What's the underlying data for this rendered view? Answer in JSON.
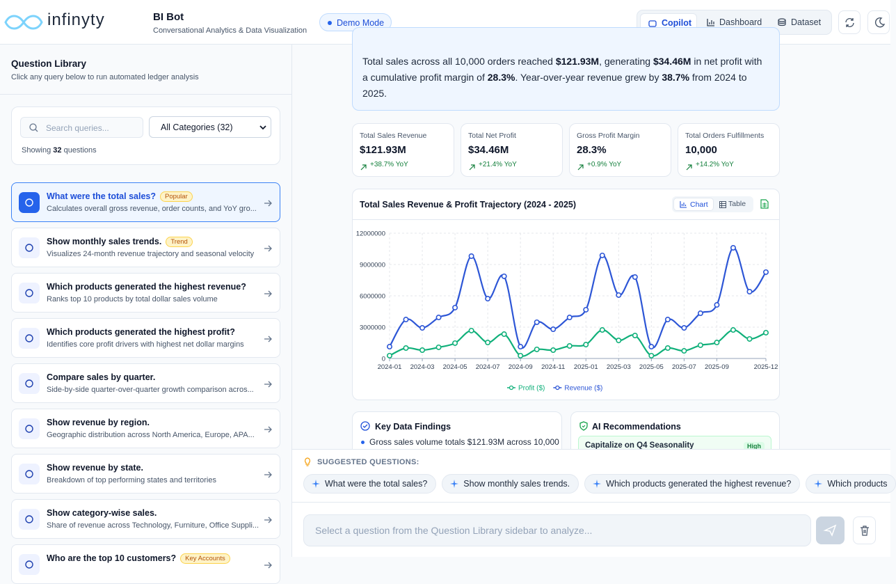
{
  "header": {
    "brand": "infinyty",
    "app_title": "BI Bot",
    "app_subtitle": "Conversational Analytics & Data Visualization",
    "mode_badge": "Demo Mode",
    "nav": [
      "Copilot",
      "Dashboard",
      "Dataset"
    ]
  },
  "sidebar": {
    "title": "Question Library",
    "subtitle": "Click any query below to run automated ledger analysis",
    "search_placeholder": "Search queries...",
    "category_select": "All Categories (32)",
    "showing_prefix": "Showing",
    "showing_count": 32,
    "showing_suffix": "questions",
    "questions": [
      {
        "title": "What were the total sales?",
        "tag": "Popular",
        "description": "Calculates overall gross revenue, order counts, and YoY gro..."
      },
      {
        "title": "Show monthly sales trends.",
        "tag": "Trend",
        "description": "Visualizes 24-month revenue trajectory and seasonal velocity"
      },
      {
        "title": "Which products generated the highest revenue?",
        "description": "Ranks top 10 products by total dollar sales volume"
      },
      {
        "title": "Which products generated the highest profit?",
        "description": "Identifies core profit drivers with highest net dollar margins"
      },
      {
        "title": "Compare sales by quarter.",
        "description": "Side-by-side quarter-over-quarter growth comparison acros..."
      },
      {
        "title": "Show revenue by region.",
        "description": "Geographic distribution across North America, Europe, APA..."
      },
      {
        "title": "Show revenue by state.",
        "description": "Breakdown of top performing states and territories"
      },
      {
        "title": "Show category-wise sales.",
        "description": "Share of revenue across Technology, Furniture, Office Suppli..."
      },
      {
        "title": "Who are the top 10 customers?",
        "tag": "Key Accounts"
      }
    ]
  },
  "summary": [
    {
      "text": "Total sales across all 10,000 orders reached "
    },
    {
      "text": "$121.93M",
      "bold": true
    },
    {
      "text": ", generating "
    },
    {
      "text": "$34.46M",
      "bold": true
    },
    {
      "text": " in net profit with a cumulative profit margin of "
    },
    {
      "text": "28.3%",
      "bold": true
    },
    {
      "text": ". Year-over-year revenue grew by "
    },
    {
      "text": "38.7%",
      "bold": true
    },
    {
      "text": " from 2024 to 2025."
    }
  ],
  "kpis": [
    {
      "label": "Total Sales Revenue",
      "value": "$121.93M",
      "change": "+38.7% YoY"
    },
    {
      "label": "Total Net Profit",
      "value": "$34.46M",
      "change": "+21.4% YoY"
    },
    {
      "label": "Gross Profit Margin",
      "value": "28.3%",
      "change": "+0.9% YoY"
    },
    {
      "label": "Total Orders Fulfillments",
      "value": "10,000",
      "change": "+14.2% YoY"
    }
  ],
  "chart_card": {
    "view_toggle": [
      "Chart",
      "Table"
    ]
  },
  "chart_data": {
    "type": "line",
    "title": "Total Sales Revenue & Profit Trajectory (2024 - 2025)",
    "categories": [
      "2024-01",
      null,
      "2024-03",
      null,
      "2024-05",
      null,
      "2024-07",
      null,
      "2024-09",
      null,
      "2024-11",
      null,
      "2025-01",
      null,
      "2025-03",
      null,
      "2025-05",
      null,
      "2025-07",
      null,
      "2025-09",
      null,
      null,
      "2025-12"
    ],
    "series": [
      {
        "name": "Profit ($)",
        "color": "#10b07a",
        "values": [
          270000,
          1000000,
          800000,
          1070000,
          1470000,
          2670000,
          1530000,
          2330000,
          270000,
          870000,
          800000,
          1200000,
          1330000,
          2730000,
          1730000,
          2200000,
          270000,
          1000000,
          730000,
          1270000,
          1530000,
          2730000,
          1870000,
          2470000
        ]
      },
      {
        "name": "Revenue ($)",
        "color": "#2d56d6",
        "values": [
          1130000,
          3730000,
          2930000,
          3930000,
          4870000,
          9800000,
          5730000,
          7870000,
          1130000,
          3470000,
          2800000,
          3930000,
          4670000,
          9870000,
          6070000,
          7800000,
          1130000,
          3730000,
          2930000,
          4330000,
          5130000,
          10600000,
          6400000,
          8270000
        ]
      }
    ],
    "ylim": [
      0,
      12000000
    ],
    "yticks": [
      0,
      3000000,
      6000000,
      9000000,
      12000000
    ],
    "grid": true
  },
  "findings": {
    "title": "Key Data Findings",
    "items": [
      "Gross sales volume totals $121.93M across 10,000"
    ]
  },
  "recommendations": {
    "title": "AI Recommendations",
    "items": [
      {
        "title": "Capitalize on Q4 Seasonality",
        "priority": "High"
      }
    ]
  },
  "suggestions": {
    "label": "SUGGESTED QUESTIONS:",
    "items": [
      "What were the total sales?",
      "Show monthly sales trends.",
      "Which products generated the highest revenue?",
      "Which products"
    ]
  },
  "composer": {
    "placeholder": "Select a question from the Question Library sidebar to analyze..."
  }
}
